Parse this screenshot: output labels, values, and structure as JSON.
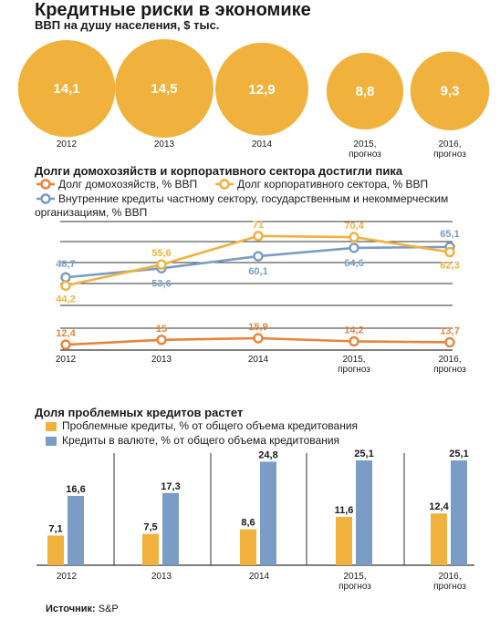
{
  "header": {
    "title": "Кредитные риски в экономике",
    "subtitle": "ВВП на душу населения, $ тыс."
  },
  "section2": {
    "title": "Долги домохозяйств и корпоративного сектора достигли пика",
    "legend_household": "Долг домохозяйств, % ВВП",
    "legend_corporate": "Долг корпоративного сектора, % ВВП",
    "legend_domestic": "Внутренние кредиты частному сектору, государственным и некоммерческим организациям, % ВВП"
  },
  "section3": {
    "title": "Доля проблемных кредитов растет",
    "legend_problem": "Проблемные кредиты, % от общего объема кредитования",
    "legend_fx": "Кредиты в валюте, % от общего объема кредитования"
  },
  "source": {
    "label": "Источник:",
    "value": "S&P"
  },
  "colors": {
    "orange": "#f0b23c",
    "orange_dark": "#e8843a",
    "blue": "#7b9cc4",
    "grid": "#333333"
  },
  "chart_data": [
    {
      "type": "bubble",
      "categories": [
        "2012",
        "2013",
        "2014",
        "2015, прогноз",
        "2016, прогноз"
      ],
      "values": [
        14.1,
        14.5,
        12.9,
        8.8,
        9.3
      ],
      "value_labels": [
        "14,1",
        "14,5",
        "12,9",
        "8,8",
        "9,3"
      ]
    },
    {
      "type": "line",
      "categories": [
        "2012",
        "2013",
        "2014",
        "2015, прогноз",
        "2016, прогноз"
      ],
      "series": [
        {
          "name": "Долг домохозяйств, % ВВП",
          "values": [
            12.4,
            15,
            15.9,
            14.2,
            13.7
          ],
          "labels": [
            "12,4",
            "15",
            "15,9",
            "14,2",
            "13,7"
          ]
        },
        {
          "name": "Долг корпоративного сектора, % ВВП",
          "values": [
            44.2,
            55.6,
            71,
            70.4,
            62.3
          ],
          "labels": [
            "44,2",
            "55,6",
            "71",
            "70,4",
            "62,3"
          ]
        },
        {
          "name": "Внутренние кредиты частному сектору, государственным и некоммерческим организациям, % ВВП",
          "values": [
            48.7,
            53.6,
            60.1,
            64.6,
            65.1
          ],
          "labels": [
            "48,7",
            "53,6",
            "60,1",
            "64,6",
            "65,1"
          ]
        }
      ]
    },
    {
      "type": "bar",
      "categories": [
        "2012",
        "2013",
        "2014",
        "2015, прогноз",
        "2016, прогноз"
      ],
      "series": [
        {
          "name": "Проблемные кредиты, % от общего объема кредитования",
          "values": [
            7.1,
            7.5,
            8.6,
            11.6,
            12.4
          ],
          "labels": [
            "7,1",
            "7,5",
            "8,6",
            "11,6",
            "12,4"
          ]
        },
        {
          "name": "Кредиты в валюте, % от общего объема кредитования",
          "values": [
            16.6,
            17.3,
            24.8,
            25.1,
            25.1
          ],
          "labels": [
            "16,6",
            "17,3",
            "24,8",
            "25,1",
            "25,1"
          ]
        }
      ]
    }
  ]
}
